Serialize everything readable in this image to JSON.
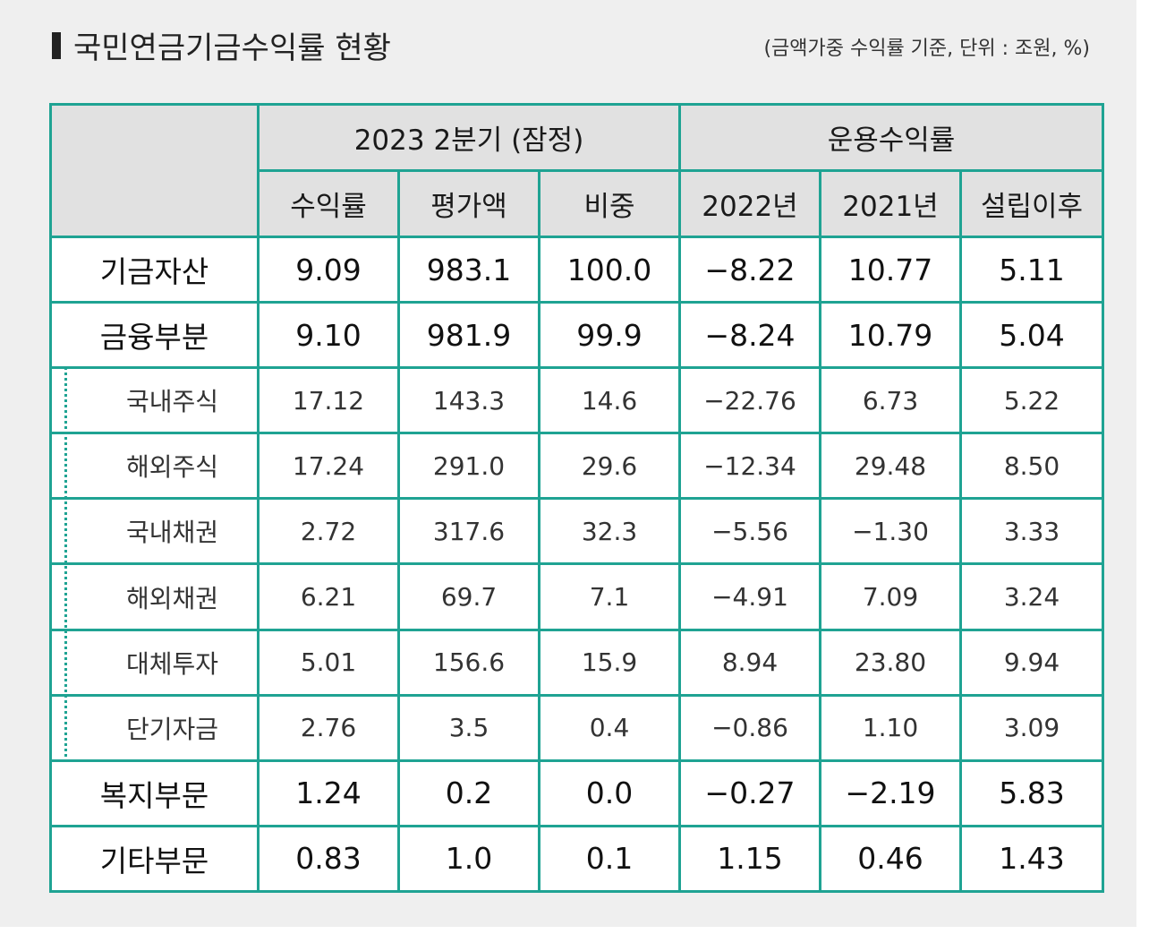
{
  "title": "국민연금기금수익률 현황",
  "unit_note": "(금액가중 수익률 기준, 단위 : 조원, %)",
  "header": {
    "group1": "2023  2분기 (잠정)",
    "group2": "운용수익률",
    "cols": [
      "수익률",
      "평가액",
      "비중",
      "2022년",
      "2021년",
      "설립이후"
    ]
  },
  "rows": [
    {
      "label": "기금자산",
      "values": [
        "9.09",
        "983.1",
        "100.0",
        "−8.22",
        "10.77",
        "5.11"
      ]
    },
    {
      "label": "금융부분",
      "values": [
        "9.10",
        "981.9",
        "99.9",
        "−8.24",
        "10.79",
        "5.04"
      ]
    },
    {
      "label": "국내주식",
      "values": [
        "17.12",
        "143.3",
        "14.6",
        "−22.76",
        "6.73",
        "5.22"
      ]
    },
    {
      "label": "해외주식",
      "values": [
        "17.24",
        "291.0",
        "29.6",
        "−12.34",
        "29.48",
        "8.50"
      ]
    },
    {
      "label": "국내채권",
      "values": [
        "2.72",
        "317.6",
        "32.3",
        "−5.56",
        "−1.30",
        "3.33"
      ]
    },
    {
      "label": "해외채권",
      "values": [
        "6.21",
        "69.7",
        "7.1",
        "−4.91",
        "7.09",
        "3.24"
      ]
    },
    {
      "label": "대체투자",
      "values": [
        "5.01",
        "156.6",
        "15.9",
        "8.94",
        "23.80",
        "9.94"
      ]
    },
    {
      "label": "단기자금",
      "values": [
        "2.76",
        "3.5",
        "0.4",
        "−0.86",
        "1.10",
        "3.09"
      ]
    },
    {
      "label": "복지부문",
      "values": [
        "1.24",
        "0.2",
        "0.0",
        "−0.27",
        "−2.19",
        "5.83"
      ]
    },
    {
      "label": "기타부문",
      "values": [
        "0.83",
        "1.0",
        "0.1",
        "1.15",
        "0.46",
        "1.43"
      ]
    }
  ],
  "colors": {
    "border": "#1fa393",
    "header_bg": "#e1e1e1",
    "page_bg": "#efefef"
  }
}
